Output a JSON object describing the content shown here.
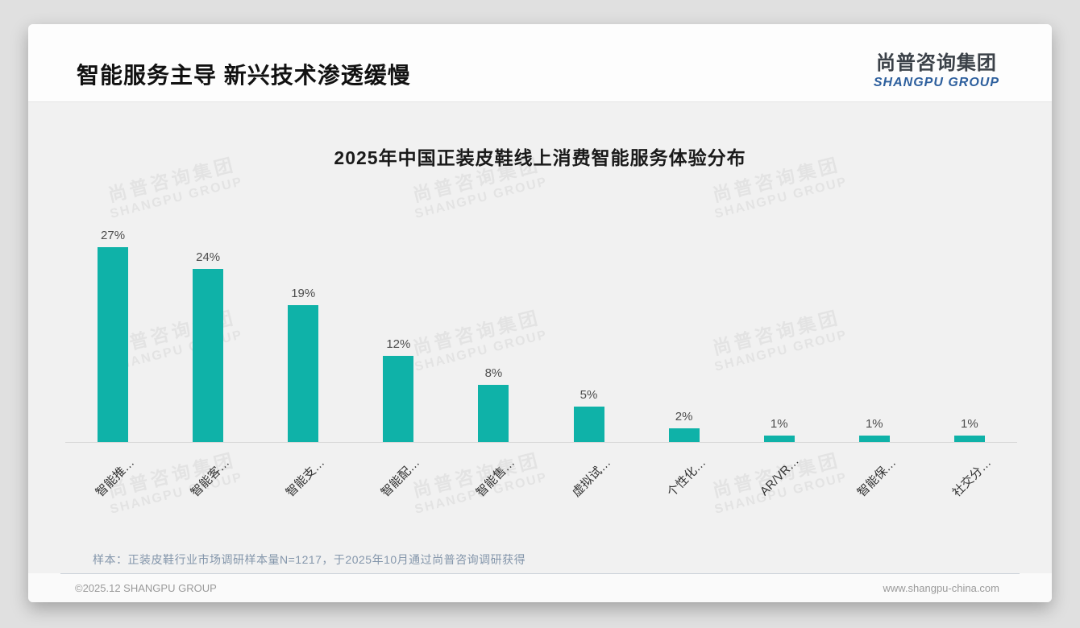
{
  "page": {
    "header": {
      "title": "智能服务主导 新兴技术渗透缓慢",
      "logo": {
        "cn": "尚普咨询集团",
        "en": "SHANGPU GROUP"
      }
    },
    "watermark": {
      "cn": "尚普咨询集团",
      "en": "SHANGPU GROUP"
    },
    "footer": {
      "note": "样本：正装皮鞋行业市场调研样本量N=1217，于2025年10月通过尚普咨询调研获得",
      "copyright": "©2025.12 SHANGPU GROUP",
      "website": "www.shangpu-china.com"
    },
    "colors": {
      "accent_teal": "#0fb2a8",
      "brand_blue": "#2d5f9d"
    }
  },
  "chart_data": {
    "type": "bar",
    "title": "2025年中国正装皮鞋线上消费智能服务体验分布",
    "categories": [
      "智能推…",
      "智能客…",
      "智能支…",
      "智能配…",
      "智能售…",
      "虚拟试…",
      "个性化…",
      "AR/VR…",
      "智能保…",
      "社交分…"
    ],
    "values": [
      27,
      24,
      19,
      12,
      8,
      5,
      2,
      1,
      1,
      1
    ],
    "value_labels": [
      "27%",
      "24%",
      "19%",
      "12%",
      "8%",
      "5%",
      "2%",
      "1%",
      "1%",
      "1%"
    ],
    "unit": "%",
    "bar_color": "#0fb2a8",
    "xlabel": "",
    "ylabel": "",
    "ylim": [
      0,
      30
    ],
    "grid": false,
    "legend": null
  }
}
